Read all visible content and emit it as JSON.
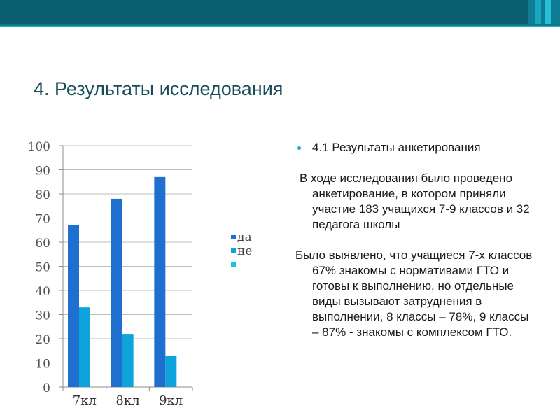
{
  "slide": {
    "title": "4. Результаты исследования",
    "colors": {
      "header_dark": "#0a5a6e",
      "header_mid": "#0d7a8f",
      "accent_cyan": "#27b5d3",
      "title": "#1a4d5c"
    }
  },
  "text": {
    "bullet_heading": "4.1 Результаты анкетирования",
    "paragraph1": "В ходе исследования было проведено анкетирование, в котором приняли участие 183 учащихся 7-9 классов и 32 педагога школы",
    "paragraph2": "Было выявлено, что  учащиеся 7-х классов 67% знакомы с нормативами ГТО и готовы к выполнению, но отдельные виды вызывают затруднения в выполнении, 8 классы – 78%, 9 классы – 87% - знакомы с комплексом ГТО."
  },
  "chart_data": {
    "type": "bar",
    "categories": [
      "7кл",
      "8кл",
      "9кл"
    ],
    "series": [
      {
        "name": "да",
        "values": [
          67,
          78,
          87
        ],
        "color": "#1f6fcf"
      },
      {
        "name": "не",
        "values": [
          33,
          22,
          13
        ],
        "color": "#0fa3dc"
      },
      {
        "name": "",
        "values": [
          0,
          0,
          0
        ],
        "color": "#1fc0d8"
      }
    ],
    "ylim": [
      0,
      100
    ],
    "yticks": [
      0,
      10,
      20,
      30,
      40,
      50,
      60,
      70,
      80,
      90,
      100
    ],
    "grid": true,
    "legend": "right"
  }
}
